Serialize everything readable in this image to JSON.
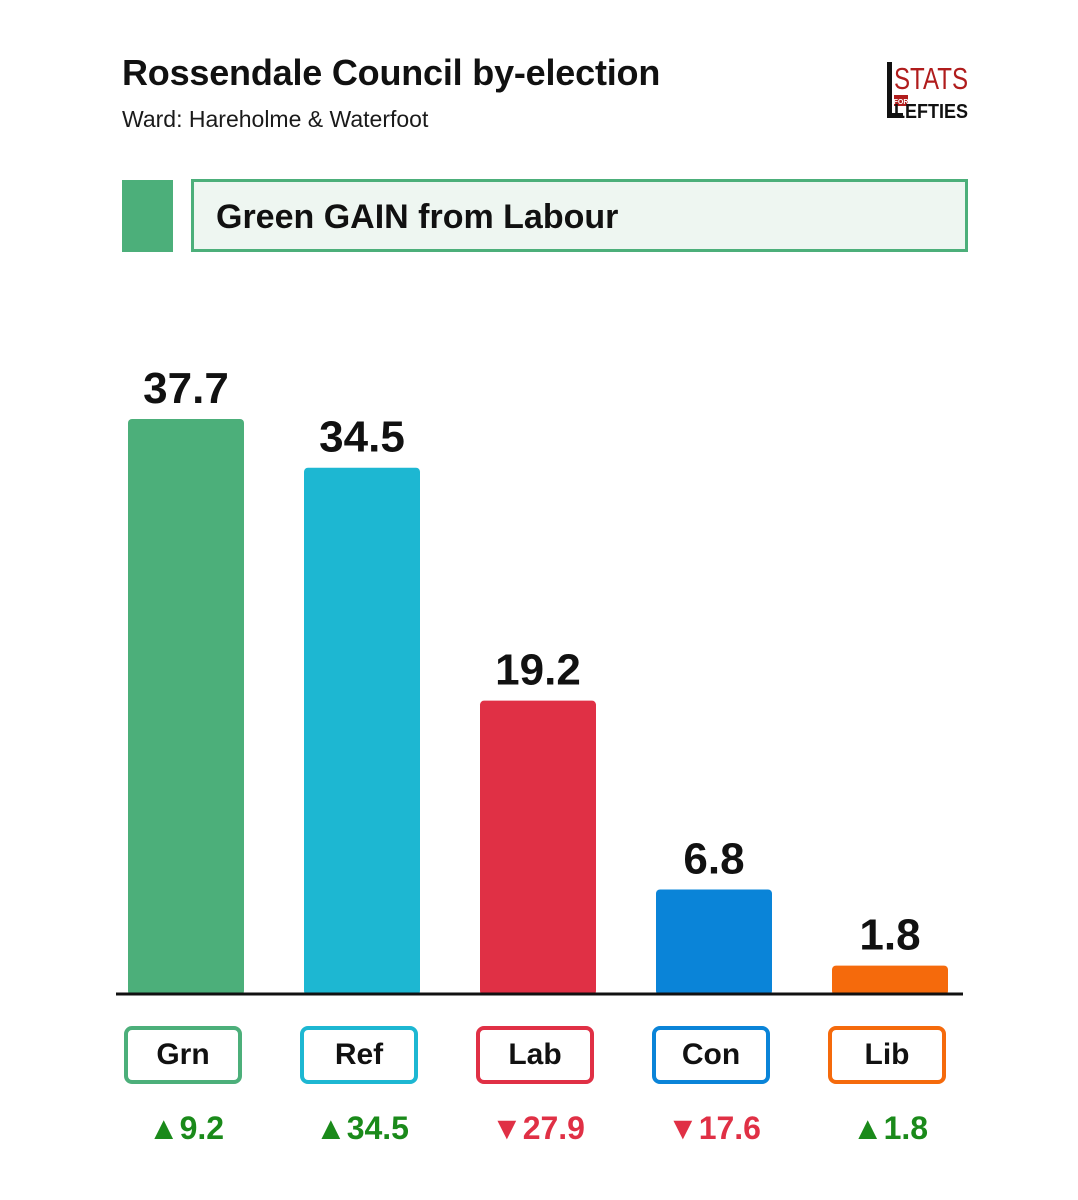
{
  "header": {
    "title": "Rossendale Council by-election",
    "subtitle": "Ward: Hareholme & Waterfoot"
  },
  "logo": {
    "line1": "STATS",
    "line2": "FOR",
    "line3": "LEFTIES",
    "color": "#b01c1c"
  },
  "banner": {
    "text": "Green GAIN from Labour",
    "color": "#4caf7a",
    "background": "#eef6f1"
  },
  "chart_data": {
    "type": "bar",
    "title": "Rossendale Council by-election",
    "subtitle": "Ward: Hareholme & Waterfoot",
    "xlabel": "",
    "ylabel": "",
    "ylim": [
      0,
      40
    ],
    "grid": false,
    "categories": [
      "Grn",
      "Ref",
      "Lab",
      "Con",
      "Lib"
    ],
    "values": [
      37.7,
      34.5,
      19.2,
      6.8,
      1.8
    ],
    "value_labels": [
      "37.7",
      "34.5",
      "19.2",
      "6.8",
      "1.8"
    ],
    "colors": [
      "#4caf7a",
      "#1db7d2",
      "#e03045",
      "#0a84d8",
      "#f56a0c"
    ],
    "changes": [
      {
        "label": "▲9.2",
        "value": 9.2,
        "direction": "up"
      },
      {
        "label": "▲34.5",
        "value": 34.5,
        "direction": "up"
      },
      {
        "label": "▼27.9",
        "value": -27.9,
        "direction": "down"
      },
      {
        "label": "▼17.6",
        "value": -17.6,
        "direction": "down"
      },
      {
        "label": "▲1.8",
        "value": 1.8,
        "direction": "up"
      }
    ],
    "change_colors": {
      "up": "#1a8a1a",
      "down": "#e03045"
    }
  }
}
